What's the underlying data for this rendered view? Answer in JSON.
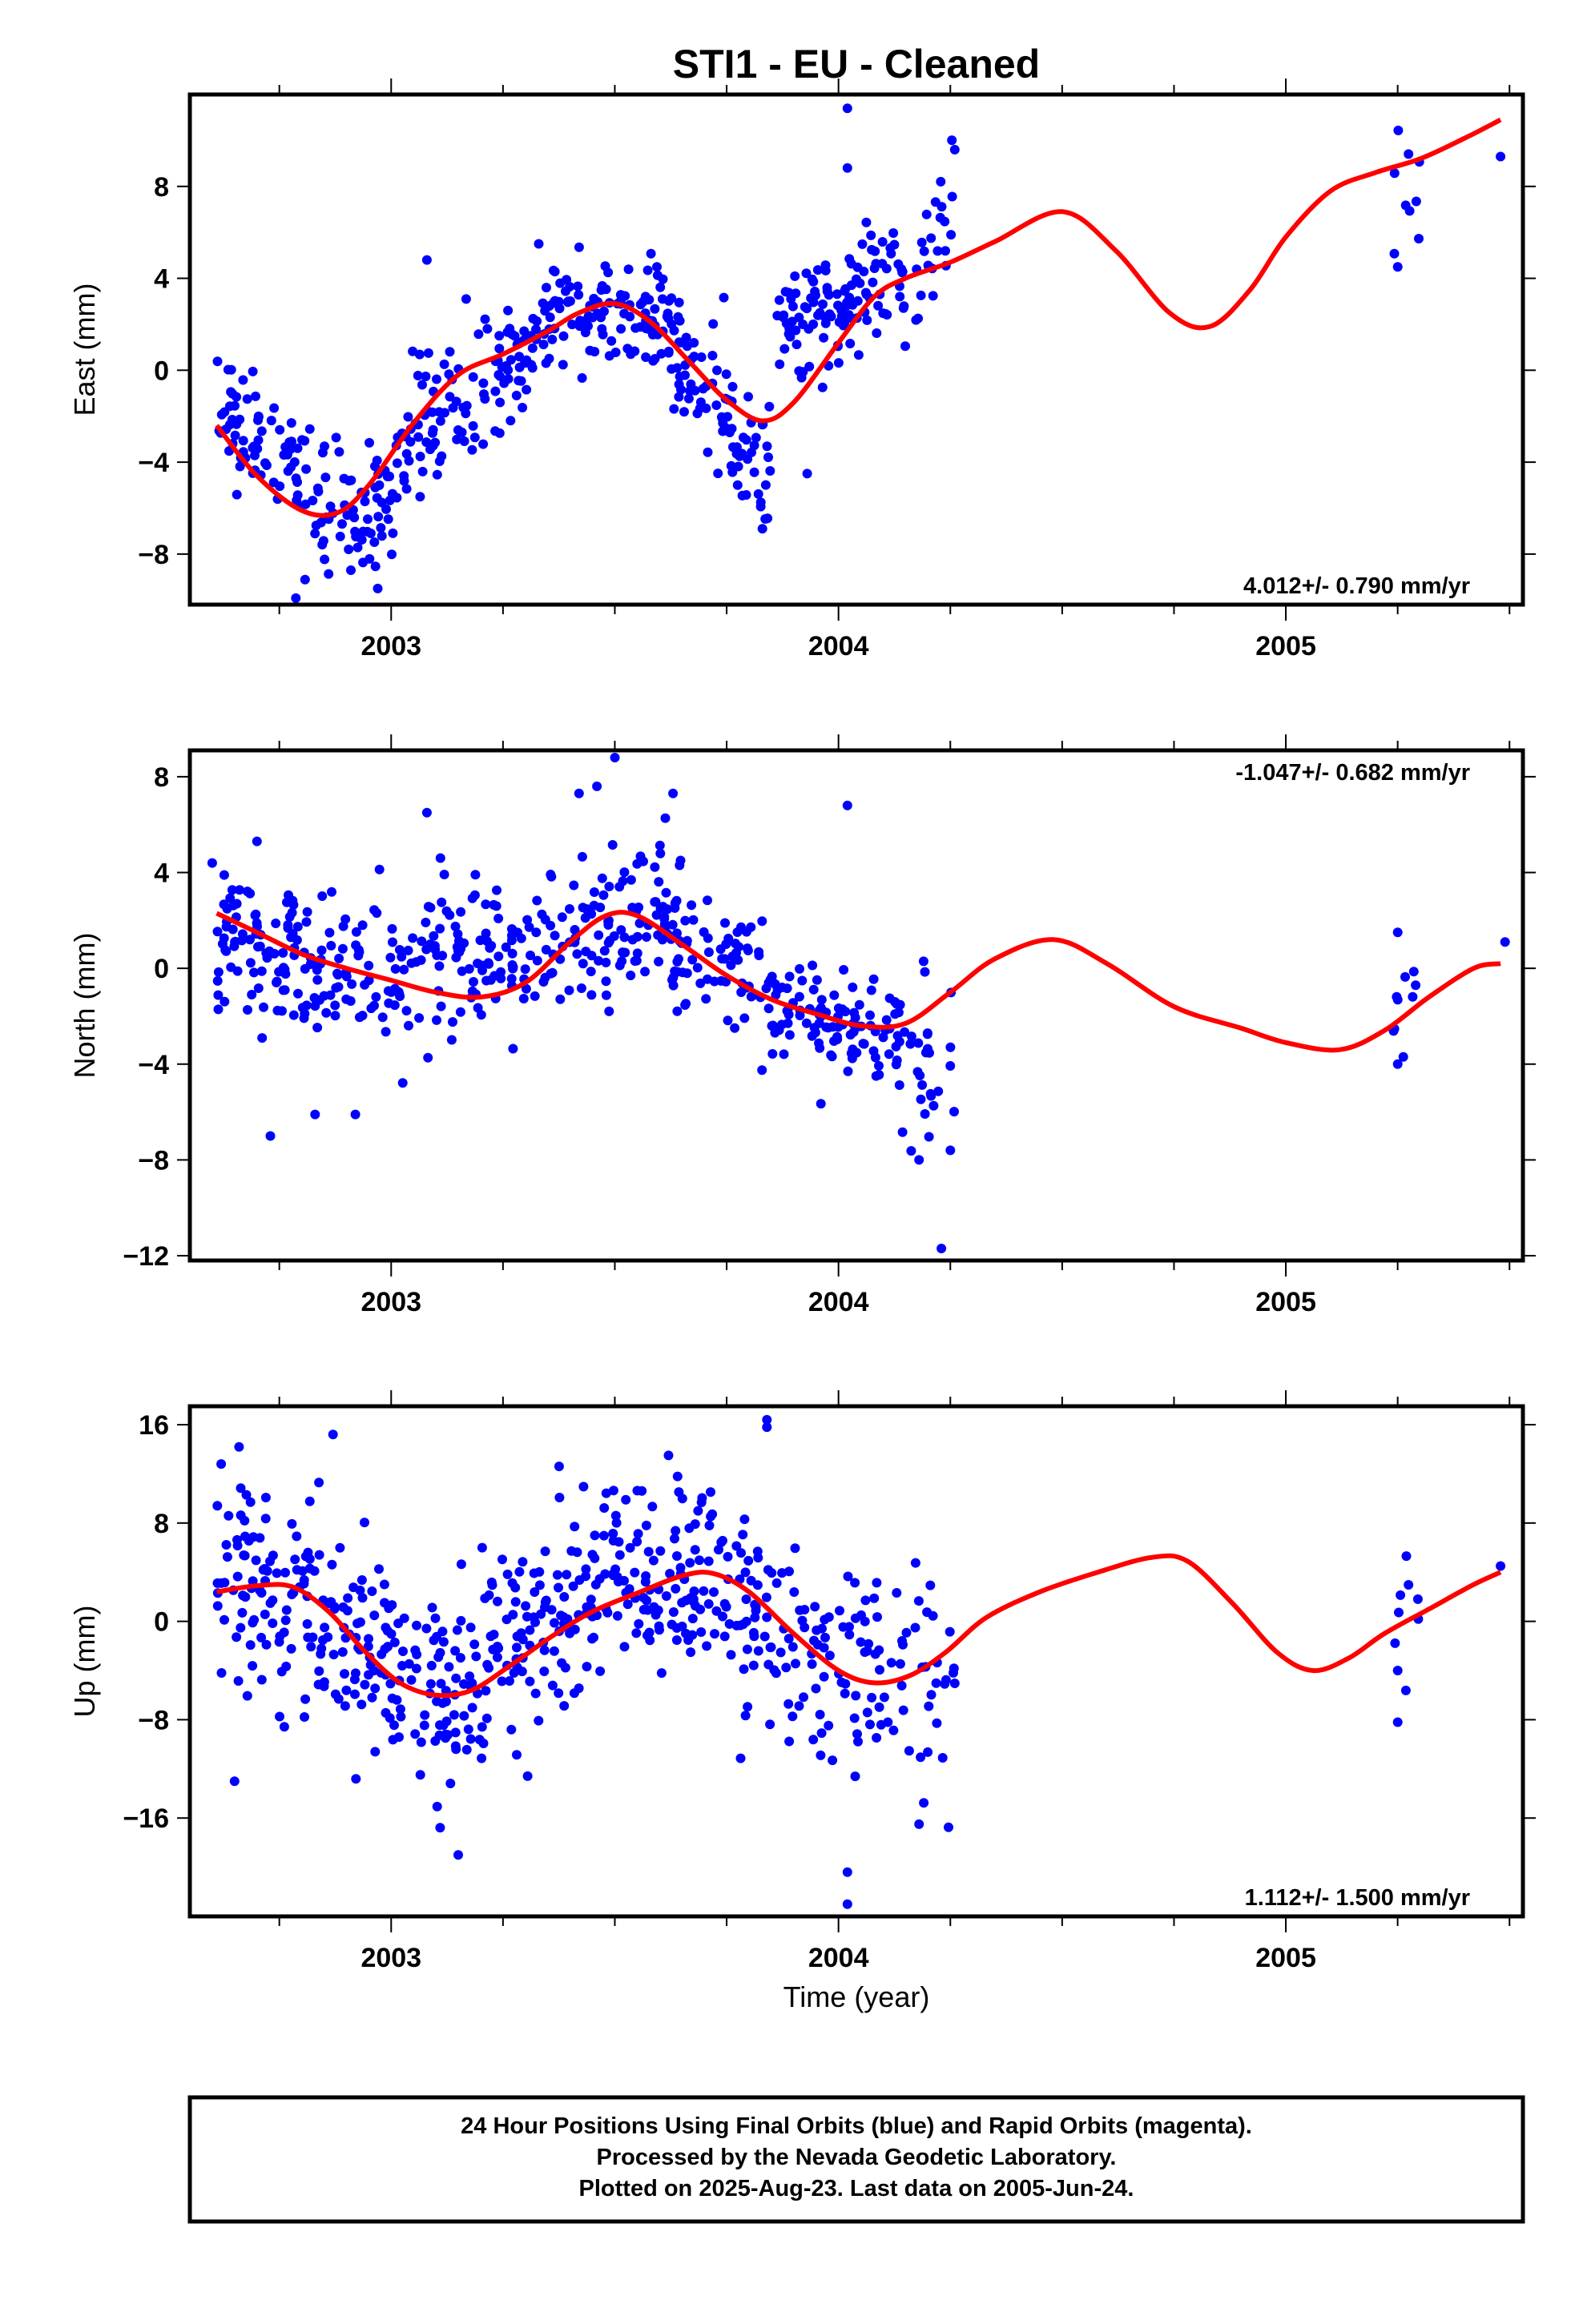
{
  "title": "STI1  - EU - Cleaned",
  "xlabel": "Time (year)",
  "footer": [
    "24 Hour Positions Using Final Orbits (blue) and Rapid Orbits (magenta).",
    "Processed by the Nevada Geodetic Laboratory.",
    "Plotted on 2025-Aug-23. Last data on 2005-Jun-24."
  ],
  "colors": {
    "points": "#0000ff",
    "fit": "#ff0000",
    "frame": "#000000"
  },
  "chart_data": [
    {
      "type": "scatter",
      "ylabel": "East (mm)",
      "rate_label": "4.012+/- 0.790 mm/yr",
      "rate_position": "bottom-right",
      "xlim": [
        2002.55,
        2005.53
      ],
      "ylim": [
        -10.2,
        12.0
      ],
      "yticks": [
        -8,
        -4,
        0,
        4,
        8
      ],
      "xticks": [
        2003,
        2004,
        2005
      ],
      "seed": 11,
      "clusters": [
        {
          "x": [
            2002.61,
            2002.68
          ],
          "count": 28,
          "y": [
            -1.3,
            -2.6
          ],
          "sd": 1.4
        },
        {
          "x": [
            2002.68,
            2002.85
          ],
          "count": 55,
          "y": [
            -3.0,
            -5.6
          ],
          "sd": 1.4
        },
        {
          "x": [
            2002.85,
            2003.01
          ],
          "count": 55,
          "y": [
            -6.5,
            -6.0
          ],
          "sd": 1.3
        },
        {
          "x": [
            2003.01,
            2003.22
          ],
          "count": 70,
          "y": [
            -3.5,
            -0.5
          ],
          "sd": 1.5
        },
        {
          "x": [
            2003.22,
            2003.36
          ],
          "count": 55,
          "y": [
            0.0,
            1.4
          ],
          "sd": 1.3
        },
        {
          "x": [
            2003.36,
            2003.62
          ],
          "count": 95,
          "y": [
            2.8,
            2.2
          ],
          "sd": 1.2
        },
        {
          "x": [
            2003.62,
            2003.76
          ],
          "count": 55,
          "y": [
            0.8,
            -2.0
          ],
          "sd": 1.4
        },
        {
          "x": [
            2003.76,
            2003.85
          ],
          "count": 35,
          "y": [
            -3.3,
            -4.8
          ],
          "sd": 1.4
        },
        {
          "x": [
            2003.86,
            2004.02
          ],
          "count": 70,
          "y": [
            2.2,
            2.2
          ],
          "sd": 1.3
        },
        {
          "x": [
            2004.02,
            2004.15
          ],
          "count": 50,
          "y": [
            3.2,
            4.6
          ],
          "sd": 1.4
        },
        {
          "x": [
            2004.15,
            2004.26
          ],
          "count": 22,
          "y": [
            5.0,
            7.2
          ],
          "sd": 1.6
        },
        {
          "x": [
            2005.24,
            2005.3
          ],
          "count": 9,
          "y": [
            7.2,
            7.8
          ],
          "sd": 1.4
        }
      ],
      "points": [
        {
          "x": 2002.97,
          "y": -9.5
        },
        {
          "x": 2002.91,
          "y": -8.7
        },
        {
          "x": 2004.02,
          "y": 11.4
        },
        {
          "x": 2004.02,
          "y": 8.8
        },
        {
          "x": 2003.93,
          "y": -4.5
        },
        {
          "x": 2004.26,
          "y": 9.6
        },
        {
          "x": 2005.25,
          "y": 4.5
        },
        {
          "x": 2005.48,
          "y": 9.3
        },
        {
          "x": 2003.83,
          "y": -6.9
        },
        {
          "x": 2003.33,
          "y": 5.5
        },
        {
          "x": 2003.08,
          "y": 4.8
        }
      ],
      "fit": {
        "x": [
          2002.61,
          2002.7,
          2002.8,
          2002.88,
          2002.95,
          2003.05,
          2003.15,
          2003.25,
          2003.35,
          2003.42,
          2003.5,
          2003.58,
          2003.67,
          2003.75,
          2003.83,
          2003.9,
          2004.0,
          2004.08,
          2004.15,
          2004.25,
          2004.35,
          2004.5,
          2004.62,
          2004.74,
          2004.83,
          2004.92,
          2005.0,
          2005.1,
          2005.2,
          2005.3,
          2005.4,
          2005.48
        ],
        "y": [
          -2.4,
          -4.6,
          -6.1,
          -6.2,
          -5.0,
          -2.3,
          -0.2,
          0.7,
          1.7,
          2.5,
          2.9,
          2.1,
          0.3,
          -1.3,
          -2.2,
          -1.4,
          1.2,
          3.2,
          4.0,
          4.7,
          5.6,
          6.9,
          5.2,
          2.5,
          1.9,
          3.5,
          5.8,
          7.8,
          8.6,
          9.2,
          10.1,
          10.9
        ]
      }
    },
    {
      "type": "scatter",
      "ylabel": "North (mm)",
      "rate_label": "-1.047+/- 0.682 mm/yr",
      "rate_position": "top-right",
      "xlim": [
        2002.55,
        2005.53
      ],
      "ylim": [
        -12.2,
        9.1
      ],
      "yticks": [
        -12,
        -8,
        -4,
        0,
        4,
        8
      ],
      "xticks": [
        2003,
        2004,
        2005
      ],
      "seed": 23,
      "clusters": [
        {
          "x": [
            2002.61,
            2002.8
          ],
          "count": 80,
          "y": [
            1.2,
            0.2
          ],
          "sd": 1.6
        },
        {
          "x": [
            2002.8,
            2003.1
          ],
          "count": 95,
          "y": [
            0.3,
            -0.6
          ],
          "sd": 1.5
        },
        {
          "x": [
            2003.1,
            2003.3
          ],
          "count": 75,
          "y": [
            0.0,
            -0.4
          ],
          "sd": 1.7
        },
        {
          "x": [
            2003.3,
            2003.62
          ],
          "count": 110,
          "y": [
            1.2,
            2.2
          ],
          "sd": 1.5
        },
        {
          "x": [
            2003.62,
            2003.85
          ],
          "count": 75,
          "y": [
            0.6,
            0.0
          ],
          "sd": 1.5
        },
        {
          "x": [
            2003.85,
            2004.02
          ],
          "count": 60,
          "y": [
            -1.8,
            -2.6
          ],
          "sd": 1.2
        },
        {
          "x": [
            2004.02,
            2004.26
          ],
          "count": 70,
          "y": [
            -3.0,
            -3.8
          ],
          "sd": 1.5
        },
        {
          "x": [
            2005.24,
            2005.3
          ],
          "count": 9,
          "y": [
            -1.8,
            -1.4
          ],
          "sd": 1.0
        }
      ],
      "points": [
        {
          "x": 2003.5,
          "y": 8.8
        },
        {
          "x": 2003.46,
          "y": 7.6
        },
        {
          "x": 2003.42,
          "y": 7.3
        },
        {
          "x": 2003.63,
          "y": 7.3
        },
        {
          "x": 2003.08,
          "y": 6.5
        },
        {
          "x": 2004.02,
          "y": 6.8
        },
        {
          "x": 2002.73,
          "y": -7.0
        },
        {
          "x": 2002.83,
          "y": -6.1
        },
        {
          "x": 2002.92,
          "y": -6.1
        },
        {
          "x": 2004.23,
          "y": -11.7
        },
        {
          "x": 2004.18,
          "y": -8.0
        },
        {
          "x": 2004.25,
          "y": -7.6
        },
        {
          "x": 2005.49,
          "y": 1.1
        },
        {
          "x": 2005.25,
          "y": 1.5
        },
        {
          "x": 2005.25,
          "y": -4.0
        },
        {
          "x": 2002.6,
          "y": 4.4
        },
        {
          "x": 2002.7,
          "y": 5.3
        }
      ],
      "fit": {
        "x": [
          2002.61,
          2002.7,
          2002.8,
          2002.9,
          2003.0,
          2003.1,
          2003.2,
          2003.3,
          2003.4,
          2003.48,
          2003.55,
          2003.65,
          2003.75,
          2003.85,
          2003.95,
          2004.05,
          2004.15,
          2004.25,
          2004.35,
          2004.48,
          2004.6,
          2004.75,
          2004.9,
          2005.0,
          2005.12,
          2005.22,
          2005.32,
          2005.42,
          2005.48
        ],
        "y": [
          2.3,
          1.5,
          0.6,
          0.0,
          -0.5,
          -1.0,
          -1.2,
          -0.6,
          1.1,
          2.2,
          2.2,
          1.0,
          -0.3,
          -1.3,
          -1.9,
          -2.4,
          -2.3,
          -1.0,
          0.4,
          1.2,
          0.2,
          -1.6,
          -2.5,
          -3.1,
          -3.4,
          -2.6,
          -1.2,
          0.0,
          0.2
        ]
      }
    },
    {
      "type": "scatter",
      "ylabel": "Up (mm)",
      "rate_label": "1.112+/- 1.500 mm/yr",
      "rate_position": "bottom-right",
      "xlim": [
        2002.55,
        2005.53
      ],
      "ylim": [
        -24.0,
        17.5
      ],
      "yticks": [
        -16,
        -8,
        0,
        8,
        16
      ],
      "xticks": [
        2003,
        2004,
        2005
      ],
      "seed": 37,
      "clusters": [
        {
          "x": [
            2002.61,
            2002.82
          ],
          "count": 90,
          "y": [
            3.5,
            2.5
          ],
          "sd": 4.2
        },
        {
          "x": [
            2002.82,
            2003.0
          ],
          "count": 75,
          "y": [
            0.5,
            -3.5
          ],
          "sd": 4.0
        },
        {
          "x": [
            2003.0,
            2003.22
          ],
          "count": 90,
          "y": [
            -6.0,
            -5.0
          ],
          "sd": 4.2
        },
        {
          "x": [
            2003.22,
            2003.45
          ],
          "count": 95,
          "y": [
            -2.0,
            1.5
          ],
          "sd": 4.0
        },
        {
          "x": [
            2003.45,
            2003.72
          ],
          "count": 110,
          "y": [
            3.5,
            4.5
          ],
          "sd": 4.0
        },
        {
          "x": [
            2003.72,
            2003.95
          ],
          "count": 80,
          "y": [
            1.5,
            -2.5
          ],
          "sd": 4.0
        },
        {
          "x": [
            2003.95,
            2004.26
          ],
          "count": 85,
          "y": [
            -3.5,
            -4.5
          ],
          "sd": 4.2
        },
        {
          "x": [
            2005.24,
            2005.3
          ],
          "count": 8,
          "y": [
            2.0,
            2.0
          ],
          "sd": 3.0
        }
      ],
      "points": [
        {
          "x": 2003.84,
          "y": 16.4
        },
        {
          "x": 2003.84,
          "y": 15.8
        },
        {
          "x": 2002.87,
          "y": 15.2
        },
        {
          "x": 2002.62,
          "y": 12.8
        },
        {
          "x": 2002.66,
          "y": 14.2
        },
        {
          "x": 2004.02,
          "y": -23.0
        },
        {
          "x": 2004.02,
          "y": -20.4
        },
        {
          "x": 2003.15,
          "y": -19.0
        },
        {
          "x": 2002.65,
          "y": -13.0
        },
        {
          "x": 2005.25,
          "y": -8.2
        },
        {
          "x": 2005.25,
          "y": -4.0
        },
        {
          "x": 2005.48,
          "y": 4.5
        },
        {
          "x": 2004.18,
          "y": -16.5
        },
        {
          "x": 2003.62,
          "y": 13.5
        }
      ],
      "fit": {
        "x": [
          2002.61,
          2002.7,
          2002.78,
          2002.86,
          2002.94,
          2003.02,
          2003.1,
          2003.18,
          2003.27,
          2003.36,
          2003.45,
          2003.55,
          2003.65,
          2003.72,
          2003.8,
          2003.9,
          2004.0,
          2004.08,
          2004.16,
          2004.24,
          2004.33,
          2004.45,
          2004.58,
          2004.7,
          2004.78,
          2004.88,
          2004.98,
          2005.06,
          2005.14,
          2005.22,
          2005.32,
          2005.42,
          2005.48
        ],
        "y": [
          2.4,
          2.9,
          2.8,
          0.8,
          -2.4,
          -5.0,
          -6.0,
          -5.6,
          -3.5,
          -1.2,
          0.8,
          2.3,
          3.7,
          3.9,
          2.4,
          -1.0,
          -4.0,
          -5.0,
          -4.4,
          -2.5,
          0.3,
          2.4,
          4.0,
          5.2,
          4.9,
          1.5,
          -2.5,
          -4.0,
          -3.0,
          -1.0,
          1.0,
          3.0,
          4.0
        ]
      }
    }
  ]
}
